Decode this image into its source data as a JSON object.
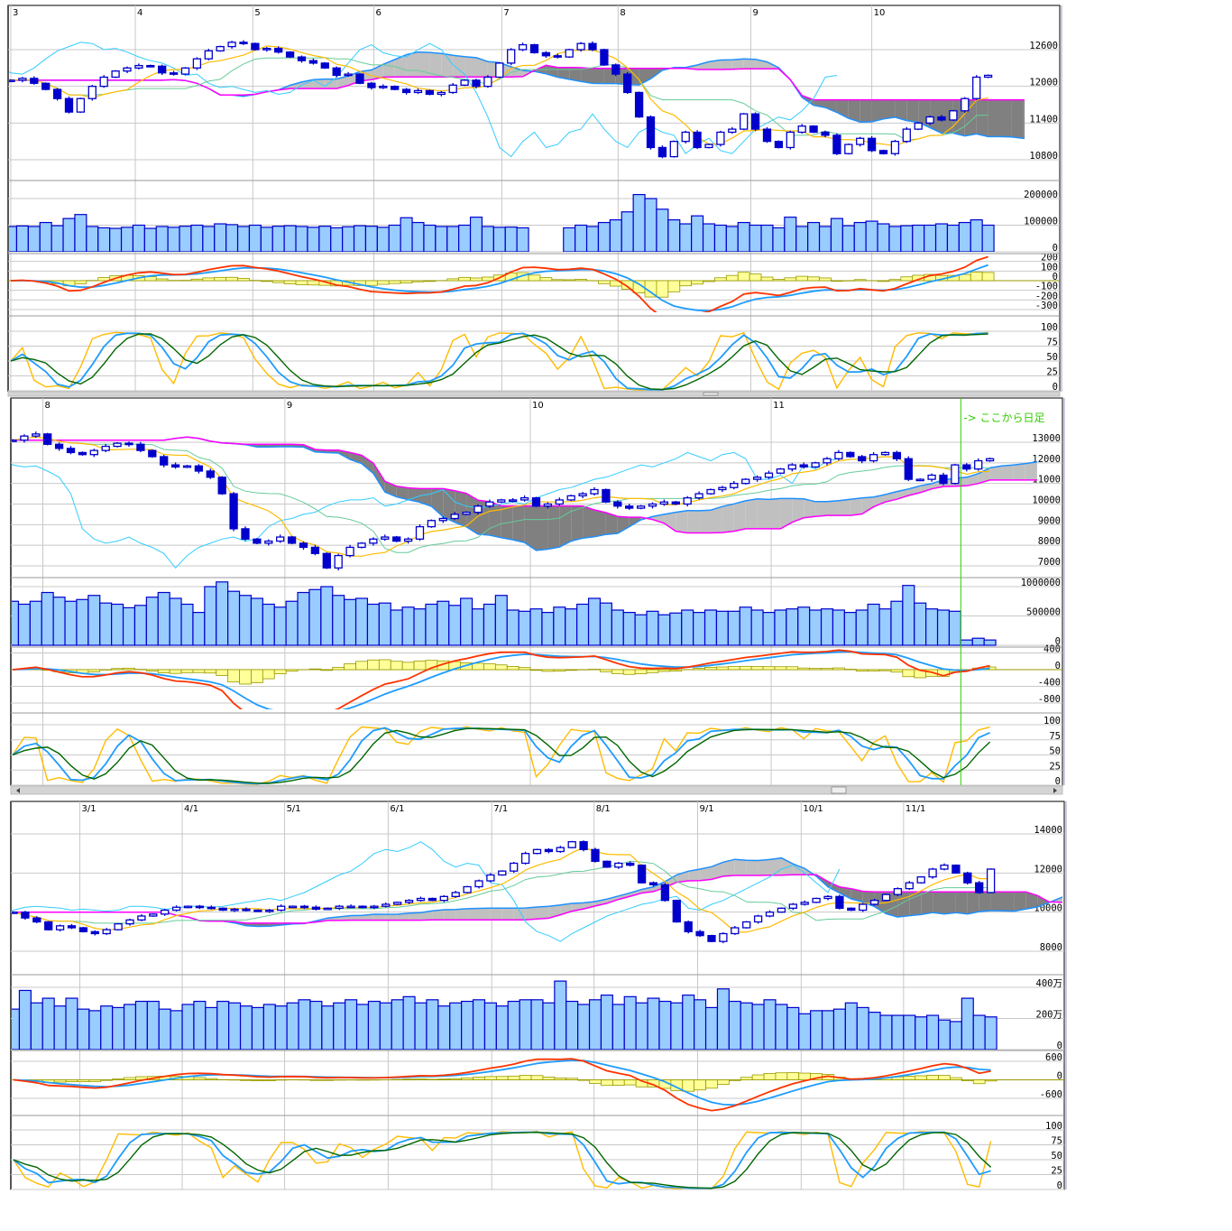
{
  "colors": {
    "candle": "#0000cc",
    "volume_fill": "#99ccff",
    "tenkan": "#ffbb00",
    "kijun": "#66cc99",
    "chikou": "#33ccff",
    "span_a": "#1e90ff",
    "span_b": "#ff00ff",
    "cloud_light": "#c0c0c0",
    "cloud_dark": "#808080",
    "macd": "#ff3300",
    "signal": "#1e9cff",
    "histogram": "#ffff99",
    "stoch_fast": "#ffbb00",
    "stoch_d": "#1e9cff",
    "stoch_slow": "#006600",
    "marker_line": "#33cc00"
  },
  "chart_data": [
    {
      "type": "candlestick",
      "x_labels": [
        {
          "label": "3",
          "bar": 0
        },
        {
          "label": "4",
          "bar": 10.7
        },
        {
          "label": "5",
          "bar": 20.8
        },
        {
          "label": "6",
          "bar": 31.2
        },
        {
          "label": "7",
          "bar": 42.2
        },
        {
          "label": "8",
          "bar": 52.2
        },
        {
          "label": "9",
          "bar": 63.6
        },
        {
          "label": "10",
          "bar": 74.0
        }
      ],
      "closes": [
        12100,
        12130,
        12050,
        11950,
        11800,
        11580,
        11800,
        12000,
        12150,
        12250,
        12300,
        12340,
        12330,
        12220,
        12200,
        12300,
        12450,
        12580,
        12650,
        12720,
        12700,
        12600,
        12620,
        12560,
        12480,
        12420,
        12380,
        12300,
        12180,
        12200,
        12050,
        11980,
        12000,
        11950,
        11900,
        11930,
        11870,
        11900,
        12020,
        12100,
        12000,
        12150,
        12380,
        12600,
        12680,
        12550,
        12500,
        12480,
        12600,
        12700,
        12600,
        12350,
        12200,
        11900,
        11500,
        11000,
        10850,
        11100,
        11250,
        11000,
        11050,
        11250,
        11300,
        11550,
        11300,
        11100,
        11000,
        11250,
        11350,
        11250,
        11200,
        10900,
        11050,
        11150,
        10950,
        10900,
        11100,
        11300,
        11400,
        11500,
        11450,
        11600,
        11800,
        12150,
        12180
      ],
      "volumes": [
        95000,
        97000,
        95000,
        110000,
        98000,
        125000,
        140000,
        95000,
        90000,
        88000,
        92000,
        100000,
        88000,
        95000,
        92000,
        96000,
        100000,
        95000,
        105000,
        102000,
        95000,
        100000,
        92000,
        96000,
        98000,
        95000,
        92000,
        96000,
        90000,
        94000,
        98000,
        96000,
        92000,
        100000,
        128000,
        110000,
        100000,
        95000,
        95000,
        100000,
        130000,
        95000,
        92000,
        93000,
        90000,
        0,
        0,
        0,
        90000,
        100000,
        95000,
        110000,
        120000,
        150000,
        215000,
        200000,
        160000,
        120000,
        105000,
        135000,
        105000,
        100000,
        95000,
        110000,
        100000,
        100000,
        90000,
        130000,
        95000,
        110000,
        95000,
        125000,
        98000,
        110000,
        115000,
        105000,
        95000,
        98000,
        100000,
        100000,
        105000,
        100000,
        110000,
        120000,
        100000
      ],
      "price_ticks": [
        {
          "value": 12600,
          "label": "12600"
        },
        {
          "value": 12000,
          "label": "12000"
        },
        {
          "value": 11400,
          "label": "11400"
        },
        {
          "value": 10800,
          "label": "10800"
        }
      ],
      "volume_ticks": [
        {
          "value": 200000,
          "label": "200000"
        },
        {
          "value": 100000,
          "label": "100000"
        },
        {
          "value": 0,
          "label": "0"
        }
      ],
      "macd_ticks": [
        {
          "value": 200,
          "label": "200"
        },
        {
          "value": 100,
          "label": "100"
        },
        {
          "value": 0,
          "label": "0"
        },
        {
          "value": -100,
          "label": "-100"
        },
        {
          "value": -200,
          "label": "-200"
        },
        {
          "value": -300,
          "label": "-300"
        }
      ],
      "stoch_ticks": [
        {
          "value": 100,
          "label": "100"
        },
        {
          "value": 75,
          "label": "75"
        },
        {
          "value": 50,
          "label": "50"
        },
        {
          "value": 25,
          "label": "25"
        },
        {
          "value": 0,
          "label": "0"
        }
      ],
      "grid": true
    },
    {
      "type": "candlestick",
      "x_labels": [
        {
          "label": "8",
          "bar": 2.6
        },
        {
          "label": "9",
          "bar": 23.4
        },
        {
          "label": "10",
          "bar": 44.5
        },
        {
          "label": "11",
          "bar": 65.2
        }
      ],
      "closes": [
        13100,
        13300,
        13400,
        12900,
        12700,
        12500,
        12400,
        12600,
        12800,
        12950,
        12900,
        12600,
        12300,
        11900,
        11800,
        11850,
        11600,
        11300,
        10500,
        8800,
        8300,
        8100,
        8200,
        8400,
        8100,
        7900,
        7600,
        6900,
        7500,
        7900,
        8100,
        8300,
        8400,
        8200,
        8300,
        8900,
        9200,
        9300,
        9500,
        9600,
        9900,
        10100,
        10200,
        10200,
        10300,
        9900,
        10000,
        10200,
        10400,
        10500,
        10700,
        10100,
        9900,
        9800,
        9900,
        10000,
        10100,
        10000,
        10300,
        10500,
        10700,
        10800,
        11000,
        11200,
        11300,
        11500,
        11700,
        11900,
        11800,
        12000,
        12200,
        12500,
        12300,
        12100,
        12400,
        12500,
        12200,
        11200,
        11200,
        11400,
        11000,
        11900,
        11700,
        12100,
        12200
      ],
      "volumes": [
        750000,
        700000,
        750000,
        900000,
        820000,
        750000,
        780000,
        850000,
        720000,
        700000,
        640000,
        680000,
        820000,
        900000,
        800000,
        700000,
        560000,
        1000000,
        1080000,
        920000,
        850000,
        800000,
        700000,
        650000,
        750000,
        900000,
        950000,
        1000000,
        850000,
        780000,
        800000,
        700000,
        720000,
        600000,
        650000,
        620000,
        700000,
        750000,
        680000,
        800000,
        620000,
        700000,
        850000,
        600000,
        580000,
        620000,
        560000,
        650000,
        620000,
        700000,
        800000,
        720000,
        600000,
        560000,
        520000,
        580000,
        520000,
        550000,
        600000,
        560000,
        600000,
        580000,
        580000,
        650000,
        600000,
        560000,
        600000,
        620000,
        650000,
        600000,
        620000,
        600000,
        560000,
        600000,
        700000,
        620000,
        750000,
        1020000,
        720000,
        620000,
        600000,
        580000,
        90000,
        120000,
        90000
      ],
      "price_ticks": [
        {
          "value": 13000,
          "label": "13000"
        },
        {
          "value": 12000,
          "label": "12000"
        },
        {
          "value": 11000,
          "label": "11000"
        },
        {
          "value": 10000,
          "label": "10000"
        },
        {
          "value": 9000,
          "label": "9000"
        },
        {
          "value": 8000,
          "label": "8000"
        },
        {
          "value": 7000,
          "label": "7000"
        }
      ],
      "volume_ticks": [
        {
          "value": 1000000,
          "label": "1000000"
        },
        {
          "value": 500000,
          "label": "500000"
        },
        {
          "value": 0,
          "label": "0"
        }
      ],
      "macd_ticks": [
        {
          "value": 400,
          "label": "400"
        },
        {
          "value": 0,
          "label": "0"
        },
        {
          "value": -400,
          "label": "-400"
        },
        {
          "value": -800,
          "label": "-800"
        }
      ],
      "stoch_ticks": [
        {
          "value": 100,
          "label": "100"
        },
        {
          "value": 75,
          "label": "75"
        },
        {
          "value": 50,
          "label": "50"
        },
        {
          "value": 25,
          "label": "25"
        },
        {
          "value": 0,
          "label": "0"
        }
      ],
      "marker": {
        "bar": 81.5,
        "label": "-> ここから日足"
      },
      "grid": true
    },
    {
      "type": "candlestick",
      "x_labels": [
        {
          "label": "3/1",
          "bar": 5.7
        },
        {
          "label": "4/1",
          "bar": 14.5
        },
        {
          "label": "5/1",
          "bar": 23.3
        },
        {
          "label": "6/1",
          "bar": 32.2
        },
        {
          "label": "7/1",
          "bar": 41.1
        },
        {
          "label": "8/1",
          "bar": 49.9
        },
        {
          "label": "9/1",
          "bar": 58.8
        },
        {
          "label": "10/1",
          "bar": 67.7
        },
        {
          "label": "11/1",
          "bar": 76.5
        }
      ],
      "closes": [
        10000,
        9700,
        9500,
        9100,
        9300,
        9200,
        9000,
        8900,
        9100,
        9400,
        9600,
        9800,
        9900,
        10100,
        10250,
        10300,
        10250,
        10200,
        10100,
        10150,
        10100,
        10050,
        10100,
        10300,
        10300,
        10250,
        10150,
        10200,
        10300,
        10300,
        10250,
        10300,
        10400,
        10500,
        10600,
        10700,
        10600,
        10800,
        11000,
        11300,
        11600,
        11900,
        12100,
        12500,
        13000,
        13200,
        13100,
        13300,
        13600,
        13200,
        12600,
        12300,
        12500,
        12400,
        11500,
        11400,
        10600,
        9500,
        9000,
        8800,
        8500,
        8900,
        9200,
        9500,
        9800,
        10000,
        10200,
        10400,
        10500,
        10700,
        10800,
        10200,
        10100,
        10400,
        10600,
        10900,
        11200,
        11500,
        11800,
        12200,
        12400,
        12000,
        11500,
        11000,
        12200
      ],
      "volumes": [
        2600000,
        3800000,
        3000000,
        3300000,
        2800000,
        3300000,
        2600000,
        2500000,
        2800000,
        2700000,
        2900000,
        3100000,
        3100000,
        2600000,
        2500000,
        2900000,
        3100000,
        2700000,
        3100000,
        3000000,
        2800000,
        2700000,
        2900000,
        2800000,
        3000000,
        3200000,
        3100000,
        2800000,
        3000000,
        3200000,
        2900000,
        3100000,
        3000000,
        3200000,
        3400000,
        3000000,
        3200000,
        2800000,
        3000000,
        3100000,
        3200000,
        3000000,
        2800000,
        3100000,
        3200000,
        3200000,
        3000000,
        4400000,
        3100000,
        2900000,
        3200000,
        3500000,
        2900000,
        3400000,
        3000000,
        3300000,
        3100000,
        3000000,
        3500000,
        3200000,
        2700000,
        3900000,
        3100000,
        3000000,
        2900000,
        3200000,
        2900000,
        2700000,
        2300000,
        2500000,
        2500000,
        2600000,
        3000000,
        2700000,
        2400000,
        2200000,
        2200000,
        2200000,
        2100000,
        2200000,
        1900000,
        1800000,
        3300000,
        2200000,
        2100000
      ],
      "price_ticks": [
        {
          "value": 14000,
          "label": "14000"
        },
        {
          "value": 12000,
          "label": "12000"
        },
        {
          "value": 10000,
          "label": "10000"
        },
        {
          "value": 8000,
          "label": "8000"
        }
      ],
      "volume_ticks": [
        {
          "value": 4000000,
          "label": "400万"
        },
        {
          "value": 2000000,
          "label": "200万"
        },
        {
          "value": 0,
          "label": "0"
        }
      ],
      "macd_ticks": [
        {
          "value": 600,
          "label": "600"
        },
        {
          "value": 0,
          "label": "0"
        },
        {
          "value": -600,
          "label": "-600"
        }
      ],
      "stoch_ticks": [
        {
          "value": 100,
          "label": "100"
        },
        {
          "value": 75,
          "label": "75"
        },
        {
          "value": 50,
          "label": "50"
        },
        {
          "value": 25,
          "label": "25"
        },
        {
          "value": 0,
          "label": "0"
        }
      ],
      "grid": true
    }
  ]
}
